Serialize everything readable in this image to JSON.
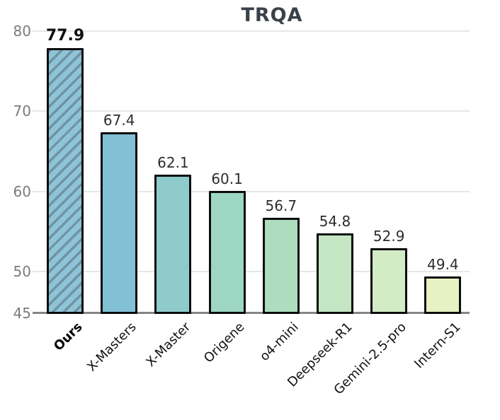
{
  "chart_data": {
    "type": "bar",
    "title": "TRQA",
    "categories": [
      "Ours",
      "X-Masters",
      "X-Master",
      "Origene",
      "o4-mini",
      "Deepseek-R1",
      "Gemini-2.5-pro",
      "Intern-S1"
    ],
    "values": [
      77.9,
      67.4,
      62.1,
      60.1,
      56.7,
      54.8,
      52.9,
      49.4
    ],
    "value_labels": [
      "77.9",
      "67.4",
      "62.1",
      "60.1",
      "56.7",
      "54.8",
      "52.9",
      "49.4"
    ],
    "bar_colors": [
      "#8ec4d8",
      "#82c0d5",
      "#90cbcc",
      "#9dd6c3",
      "#aedcbe",
      "#c4e6c3",
      "#d2ecc6",
      "#e6f1c4"
    ],
    "highlight_index": 0,
    "highlight_hatch": true,
    "xlabel": "",
    "ylabel": "",
    "ylim": [
      45,
      80
    ],
    "yticks": [
      "45",
      "50",
      "60",
      "70",
      "80"
    ],
    "grid": "horizontal",
    "legend": "none"
  },
  "colors": {
    "background": "#ffffff",
    "bar_border": "#0d0d0d",
    "hatch_line": "#5d7380",
    "gridline": "#e3e8e8",
    "axis_line": "#858585",
    "tick_label": "#7b7b7b",
    "value_label": "#2d2d2d",
    "title": "#3a4148"
  }
}
